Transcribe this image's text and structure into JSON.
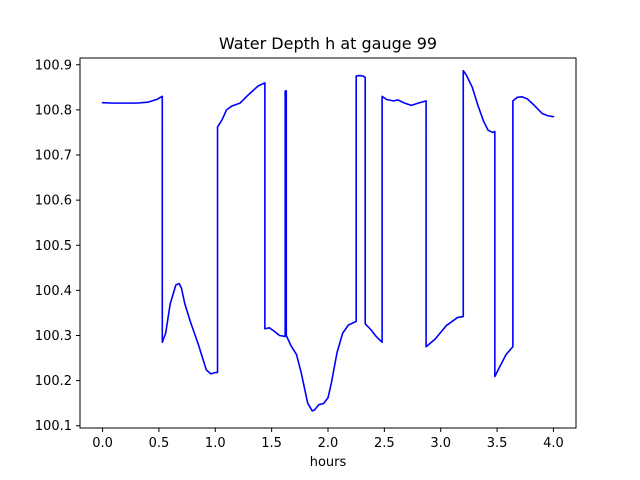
{
  "chart_data": {
    "type": "line",
    "title": "Water Depth h at gauge 99",
    "xlabel": "hours",
    "ylabel": "",
    "xlim": [
      -0.2,
      4.2
    ],
    "ylim": [
      100.095,
      100.915
    ],
    "xticks": [
      0.0,
      0.5,
      1.0,
      1.5,
      2.0,
      2.5,
      3.0,
      3.5,
      4.0
    ],
    "xtick_labels": [
      "0.0",
      "0.5",
      "1.0",
      "1.5",
      "2.0",
      "2.5",
      "3.0",
      "3.5",
      "4.0"
    ],
    "yticks": [
      100.1,
      100.2,
      100.3,
      100.4,
      100.5,
      100.6,
      100.7,
      100.8,
      100.9
    ],
    "ytick_labels": [
      "100.1",
      "100.2",
      "100.3",
      "100.4",
      "100.5",
      "100.6",
      "100.7",
      "100.8",
      "100.9"
    ],
    "grid": false,
    "series": [
      {
        "color": "#0000ff",
        "x": [
          0.0,
          0.1,
          0.2,
          0.3,
          0.4,
          0.48,
          0.53,
          0.53,
          0.56,
          0.6,
          0.65,
          0.68,
          0.7,
          0.73,
          0.78,
          0.85,
          0.92,
          0.96,
          1.0,
          1.02,
          1.02,
          1.06,
          1.1,
          1.15,
          1.22,
          1.3,
          1.38,
          1.44,
          1.44,
          1.48,
          1.52,
          1.57,
          1.62,
          1.62,
          1.63,
          1.63,
          1.67,
          1.72,
          1.76,
          1.82,
          1.86,
          1.88,
          1.92,
          1.96,
          2.0,
          2.03,
          2.08,
          2.13,
          2.18,
          2.24,
          2.25,
          2.25,
          2.28,
          2.31,
          2.33,
          2.33,
          2.38,
          2.43,
          2.48,
          2.48,
          2.52,
          2.58,
          2.62,
          2.68,
          2.74,
          2.8,
          2.87,
          2.87,
          2.95,
          3.05,
          3.15,
          3.2,
          3.2,
          3.23,
          3.28,
          3.33,
          3.38,
          3.42,
          3.46,
          3.48,
          3.48,
          3.52,
          3.58,
          3.64,
          3.64,
          3.68,
          3.72,
          3.77,
          3.83,
          3.9,
          3.95,
          4.0
        ],
        "values": [
          100.816,
          100.815,
          100.815,
          100.815,
          100.817,
          100.823,
          100.83,
          100.285,
          100.305,
          100.37,
          100.412,
          100.415,
          100.405,
          100.37,
          100.33,
          100.28,
          100.224,
          100.215,
          100.218,
          100.218,
          100.762,
          100.778,
          100.8,
          100.809,
          100.815,
          100.835,
          100.853,
          100.86,
          100.315,
          100.317,
          100.31,
          100.3,
          100.298,
          100.842,
          100.842,
          100.3,
          100.278,
          100.258,
          100.22,
          100.15,
          100.133,
          100.135,
          100.147,
          100.149,
          100.162,
          100.195,
          100.262,
          100.305,
          100.323,
          100.33,
          100.331,
          100.875,
          100.876,
          100.875,
          100.872,
          100.326,
          100.313,
          100.297,
          100.285,
          100.83,
          100.823,
          100.82,
          100.822,
          100.815,
          100.81,
          100.815,
          100.82,
          100.275,
          100.292,
          100.322,
          100.34,
          100.342,
          100.887,
          100.876,
          100.85,
          100.81,
          100.775,
          100.755,
          100.75,
          100.752,
          100.209,
          100.229,
          100.258,
          100.275,
          100.82,
          100.828,
          100.829,
          100.824,
          100.81,
          100.792,
          100.787,
          100.785
        ]
      }
    ]
  }
}
